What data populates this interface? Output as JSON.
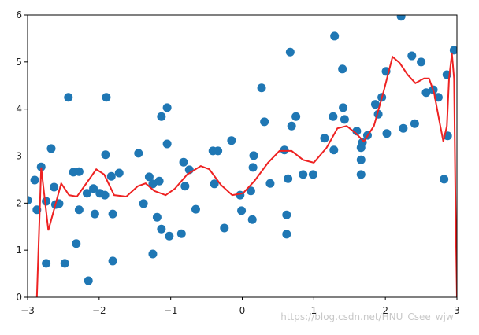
{
  "chart_data": {
    "type": "scatter",
    "xlim": [
      -3,
      3
    ],
    "ylim": [
      0,
      6
    ],
    "xticks": [
      {
        "value": -3,
        "label": "−3"
      },
      {
        "value": -2,
        "label": "−2"
      },
      {
        "value": -1,
        "label": "−1"
      },
      0,
      1,
      2,
      3
    ],
    "yticks": [
      0,
      1,
      2,
      3,
      4,
      5,
      6
    ],
    "grid": false,
    "watermark": "https://blog.csdn.net/HNU_Csee_wjw",
    "points": {
      "color": "#1f77b4",
      "x": [
        -3.0,
        -2.9,
        -2.87,
        -2.81,
        -2.74,
        -2.74,
        -2.67,
        -2.63,
        -2.61,
        -2.56,
        -2.48,
        -2.43,
        -2.36,
        -2.32,
        -2.28,
        -2.28,
        -2.17,
        -2.15,
        -2.08,
        -2.06,
        -1.99,
        -1.92,
        -1.91,
        -1.9,
        -1.83,
        -1.81,
        -1.81,
        -1.72,
        -1.45,
        -1.38,
        -1.3,
        -1.25,
        -1.25,
        -1.19,
        -1.16,
        -1.13,
        -1.13,
        -1.05,
        -1.05,
        -1.02,
        -0.85,
        -0.82,
        -0.8,
        -0.74,
        -0.65,
        -0.41,
        -0.39,
        -0.34,
        -0.25,
        -0.15,
        -0.03,
        -0.01,
        0.12,
        0.14,
        0.15,
        0.16,
        0.27,
        0.31,
        0.39,
        0.59,
        0.62,
        0.62,
        0.64,
        0.67,
        0.69,
        0.75,
        0.85,
        0.99,
        1.15,
        1.27,
        1.28,
        1.29,
        1.4,
        1.41,
        1.43,
        1.6,
        1.66,
        1.66,
        1.66,
        1.68,
        1.75,
        1.86,
        1.9,
        1.95,
        2.01,
        2.02,
        2.22,
        2.25,
        2.37,
        2.41,
        2.5,
        2.57,
        2.67,
        2.74,
        2.82,
        2.86,
        2.87,
        2.96
      ],
      "y": [
        2.06,
        2.49,
        1.86,
        2.77,
        0.72,
        2.04,
        3.16,
        2.34,
        1.97,
        1.99,
        0.72,
        4.25,
        2.66,
        1.14,
        2.67,
        1.86,
        2.21,
        0.35,
        2.31,
        1.77,
        2.21,
        2.17,
        3.03,
        4.25,
        2.57,
        1.77,
        0.77,
        2.64,
        3.06,
        1.99,
        2.56,
        0.92,
        2.41,
        1.7,
        2.47,
        1.45,
        3.84,
        4.03,
        3.26,
        1.3,
        1.35,
        2.87,
        2.36,
        2.71,
        1.87,
        3.11,
        2.41,
        3.11,
        1.47,
        3.33,
        2.17,
        1.84,
        2.26,
        1.65,
        2.76,
        3.01,
        4.45,
        3.73,
        2.42,
        3.13,
        1.75,
        1.34,
        2.52,
        5.21,
        3.64,
        3.84,
        2.61,
        2.61,
        3.38,
        3.84,
        3.13,
        5.55,
        4.85,
        4.03,
        3.78,
        3.53,
        3.18,
        2.92,
        2.61,
        3.29,
        3.44,
        4.1,
        3.89,
        4.25,
        4.8,
        3.48,
        5.97,
        3.59,
        5.13,
        3.69,
        5.0,
        4.35,
        4.41,
        4.25,
        2.51,
        4.73,
        3.43,
        5.25
      ]
    },
    "curve": {
      "color": "#ee2222",
      "x": [
        -2.87,
        -2.81,
        -2.71,
        -2.53,
        -2.42,
        -2.31,
        -2.17,
        -2.04,
        -1.93,
        -1.79,
        -1.62,
        -1.46,
        -1.35,
        -1.23,
        -1.07,
        -0.94,
        -0.77,
        -0.58,
        -0.46,
        -0.3,
        -0.14,
        0.01,
        0.17,
        0.36,
        0.52,
        0.69,
        0.85,
        1.0,
        1.18,
        1.33,
        1.46,
        1.59,
        1.7,
        1.84,
        1.98,
        2.1,
        2.2,
        2.31,
        2.42,
        2.54,
        2.61,
        2.68,
        2.75,
        2.81,
        2.86,
        2.89,
        2.93,
        2.96,
        2.98,
        3.0
      ],
      "y": [
        0,
        2.76,
        1.42,
        2.42,
        2.17,
        2.14,
        2.44,
        2.72,
        2.61,
        2.17,
        2.14,
        2.36,
        2.42,
        2.26,
        2.17,
        2.31,
        2.61,
        2.79,
        2.72,
        2.39,
        2.17,
        2.21,
        2.47,
        2.86,
        3.11,
        3.11,
        2.92,
        2.86,
        3.18,
        3.59,
        3.64,
        3.48,
        3.31,
        3.64,
        4.4,
        5.11,
        4.98,
        4.73,
        4.55,
        4.65,
        4.65,
        4.35,
        3.78,
        3.31,
        3.64,
        4.65,
        5.18,
        4.65,
        1.97,
        0
      ]
    }
  }
}
